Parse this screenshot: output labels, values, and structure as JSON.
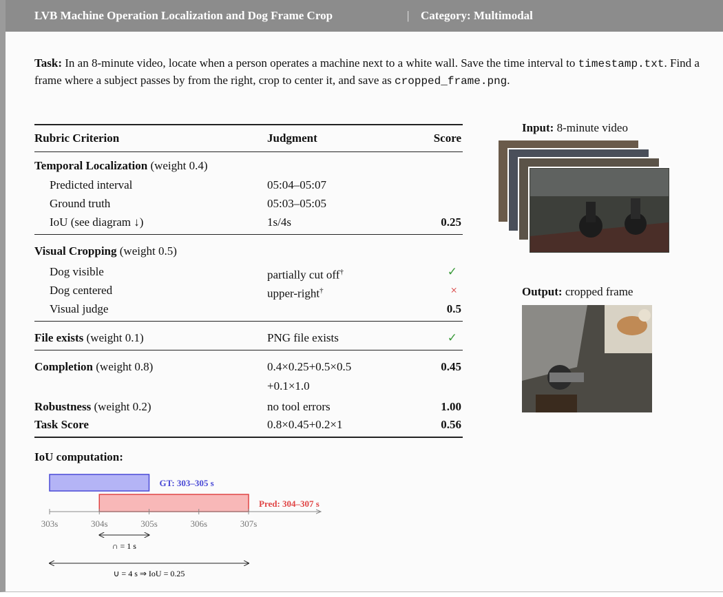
{
  "header": {
    "title": "LVB Machine Operation Localization and Dog Frame Crop",
    "separator": "|",
    "category": "Category: Multimodal"
  },
  "task": {
    "label": "Task:",
    "segments": [
      "In an 8-minute video, locate when a person operates a machine next to a white wall. Save the time interval to ",
      "timestamp.txt",
      ". Find a frame where a subject passes by from the right, crop to center it, and save as ",
      "cropped_frame.png",
      "."
    ]
  },
  "table": {
    "columns": [
      "Rubric Criterion",
      "Judgment",
      "Score"
    ],
    "sections": [
      {
        "title": "Temporal Localization",
        "weight": "(weight 0.4)",
        "rows": [
          {
            "criterion": "Predicted interval",
            "judgment": "05:04–05:07"
          },
          {
            "criterion": "Ground truth",
            "judgment": "05:03–05:05"
          },
          {
            "criterion": "IoU (see diagram ↓)",
            "judgment": "1s/4s",
            "score": "0.25"
          }
        ]
      },
      {
        "title": "Visual Cropping",
        "weight": "(weight 0.5)",
        "rows": [
          {
            "criterion": "Dog visible",
            "judgment": "partially cut off",
            "note": "†",
            "score": "✓"
          },
          {
            "criterion": "Dog centered",
            "judgment": "upper-right",
            "note": "†",
            "score": "×"
          },
          {
            "criterion": "Visual judge",
            "score": "0.5"
          }
        ]
      },
      {
        "title": "File exists",
        "weight": "(weight 0.1)",
        "judgment": "PNG file exists",
        "score": "✓"
      },
      {
        "title": "Completion",
        "weight": "(weight 0.8)",
        "judgment": [
          "0.4×0.25+0.5×0.5",
          "+0.1×1.0"
        ],
        "score": "0.45"
      },
      {
        "title": "Robustness",
        "weight": "(weight 0.2)",
        "judgment": "no tool errors",
        "score": "1.00"
      },
      {
        "title": "Task Score",
        "judgment": "0.8×0.45+0.2×1",
        "score": "0.56"
      }
    ]
  },
  "media": {
    "input_label": "Input:",
    "input_text": "8-minute video",
    "output_label": "Output:",
    "output_text": "cropped frame"
  },
  "iou_diagram": {
    "title": "IoU computation:",
    "ticks": [
      {
        "value": 303,
        "label": "303s"
      },
      {
        "value": 304,
        "label": "304s"
      },
      {
        "value": 305,
        "label": "305s"
      },
      {
        "value": 306,
        "label": "306s"
      },
      {
        "value": 307,
        "label": "307s"
      }
    ],
    "gt": {
      "label": "GT: 303–305 s",
      "start": 303,
      "end": 305,
      "color": "#4a4ad6"
    },
    "pred": {
      "label": "Pred: 304–307 s",
      "start": 304,
      "end": 307,
      "color": "#e04444"
    },
    "intersection_label": "∩ = 1 s",
    "union_label": "∪ = 4 s  ⇒ IoU = 0.25"
  }
}
